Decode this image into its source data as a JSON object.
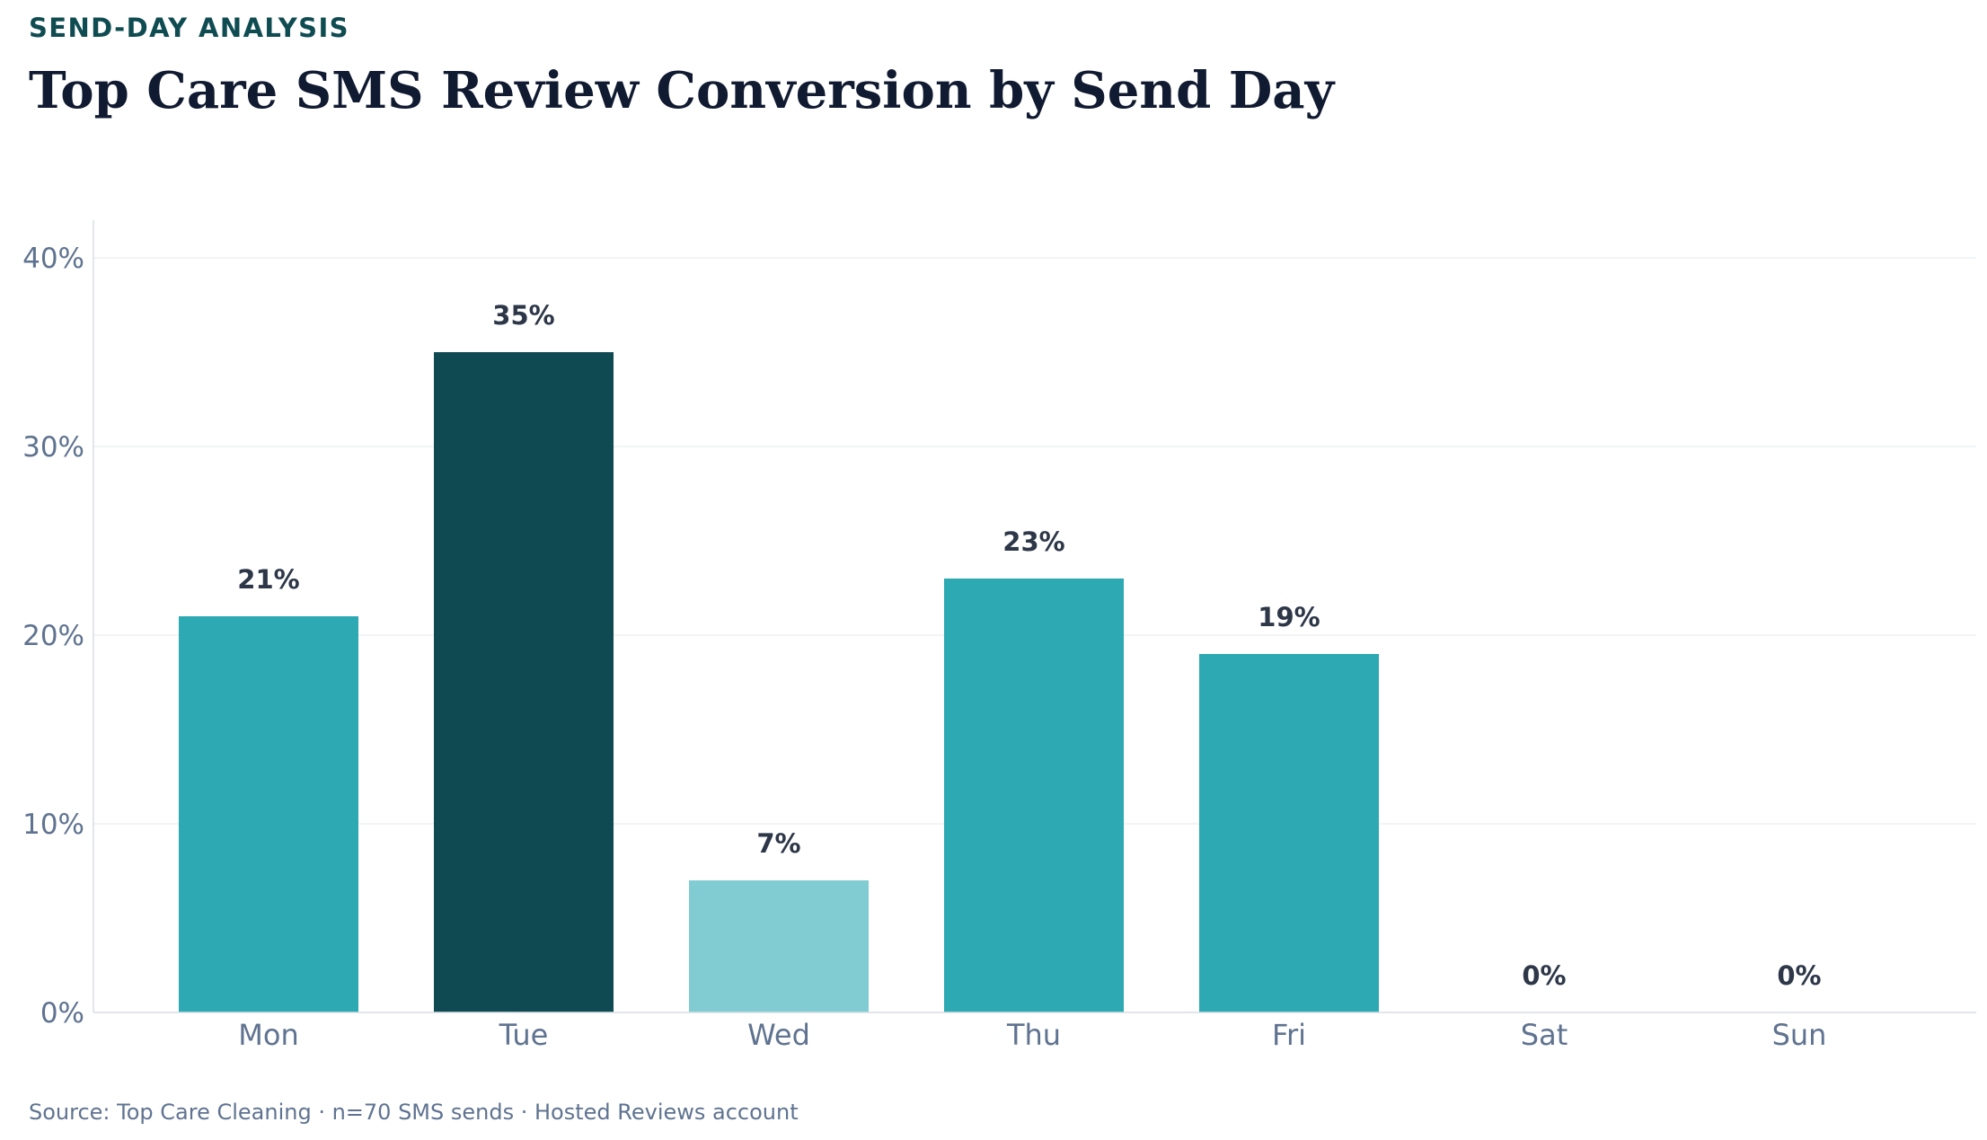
{
  "header": {
    "eyebrow": "SEND-DAY ANALYSIS",
    "title": "Top Care SMS Review Conversion by Send Day"
  },
  "footer": {
    "source": "Source: Top Care Cleaning · n=70 SMS sends · Hosted Reviews account"
  },
  "colors": {
    "standard_bar": "#2ca9b2",
    "highlight_bar": "#0f4a52",
    "low_bar": "#81cbd2",
    "tick_label": "#5f7390",
    "value_label": "#2d3748",
    "grid": "#eef0f2",
    "axis": "#d8dde3"
  },
  "chart_data": {
    "type": "bar",
    "categories": [
      "Mon",
      "Tue",
      "Wed",
      "Thu",
      "Fri",
      "Sat",
      "Sun"
    ],
    "values": [
      21,
      35,
      7,
      23,
      19,
      0,
      0
    ],
    "value_labels": [
      "21%",
      "35%",
      "7%",
      "23%",
      "19%",
      "0%",
      "0%"
    ],
    "bar_styles": [
      "standard",
      "highlight",
      "low",
      "standard",
      "standard",
      "standard",
      "standard"
    ],
    "title": "Top Care SMS Review Conversion by Send Day",
    "xlabel": "",
    "ylabel": "",
    "ylim": [
      0,
      42
    ],
    "yticks": [
      0,
      10,
      20,
      30,
      40
    ],
    "ytick_labels": [
      "0%",
      "10%",
      "20%",
      "30%",
      "40%"
    ],
    "grid": true,
    "legend": "none"
  }
}
